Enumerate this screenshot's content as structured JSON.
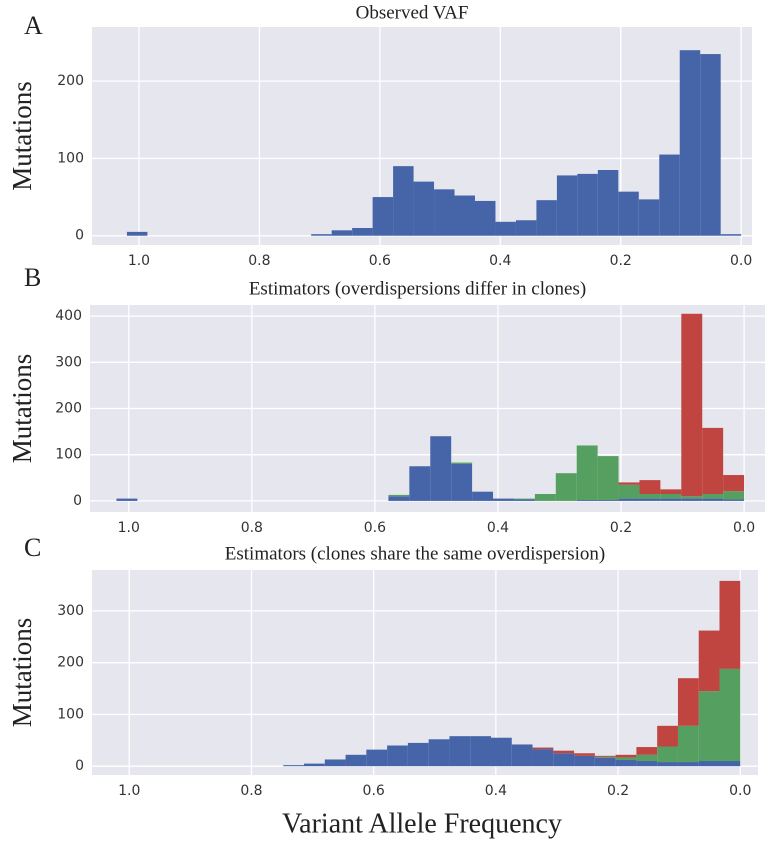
{
  "chart_data": [
    {
      "type": "histogram",
      "panel": "A",
      "title": "Observed VAF",
      "ylabel": "Mutations",
      "bins": [
        0,
        0.034,
        0.068,
        0.102,
        0.136,
        0.17,
        0.204,
        0.238,
        0.272,
        0.306,
        0.34,
        0.374,
        0.408,
        0.442,
        0.476,
        0.51,
        0.544,
        0.578,
        0.612,
        0.646,
        0.68,
        0.714,
        0.748,
        0.782,
        0.816,
        0.85,
        0.884,
        0.918,
        0.952,
        0.986,
        1.02
      ],
      "series": [
        {
          "color": "#4565a8",
          "values": [
            2,
            235,
            240,
            105,
            47,
            57,
            85,
            80,
            78,
            46,
            20,
            18,
            45,
            52,
            60,
            70,
            90,
            50,
            10,
            7,
            2,
            0,
            0,
            0,
            0,
            0,
            0,
            0,
            0,
            5
          ]
        }
      ],
      "xlim": [
        1.078,
        -0.018
      ],
      "xticks": [
        {
          "value": 1,
          "label": "1.0"
        },
        0.8,
        0.6,
        0.4,
        0.2,
        {
          "value": 0,
          "label": "0.0"
        }
      ],
      "ylim": [
        -12,
        270
      ],
      "yticks": [
        0,
        100,
        200
      ],
      "grid": true
    },
    {
      "type": "histogram",
      "panel": "B",
      "title": "Estimators (overdispersions differ in clones)",
      "ylabel": "Mutations",
      "bins": [
        0,
        0.034,
        0.068,
        0.102,
        0.136,
        0.17,
        0.204,
        0.238,
        0.272,
        0.306,
        0.34,
        0.374,
        0.408,
        0.442,
        0.476,
        0.51,
        0.544,
        0.578,
        0.612,
        0.646,
        0.68,
        0.714,
        0.748,
        0.782,
        0.816,
        0.85,
        0.884,
        0.918,
        0.952,
        0.986,
        1.02
      ],
      "series": [
        {
          "color": "#4565a8",
          "values": [
            3,
            5,
            5,
            5,
            5,
            5,
            2,
            2,
            0,
            0,
            3,
            5,
            20,
            80,
            140,
            75,
            10,
            0,
            0,
            0,
            0,
            0,
            0,
            0,
            0,
            0,
            0,
            0,
            0,
            5
          ]
        },
        {
          "color": "#55a060",
          "values": [
            18,
            10,
            5,
            10,
            10,
            30,
            95,
            118,
            60,
            15,
            2,
            0,
            0,
            3,
            0,
            0,
            3,
            0,
            0,
            0,
            0,
            0,
            0,
            0,
            0,
            0,
            0,
            0,
            0,
            0
          ]
        },
        {
          "color": "#c0443f",
          "values": [
            35,
            143,
            395,
            10,
            30,
            5,
            0,
            0,
            0,
            0,
            0,
            0,
            0,
            0,
            0,
            0,
            0,
            0,
            0,
            0,
            0,
            0,
            0,
            0,
            0,
            0,
            0,
            0,
            0,
            0
          ]
        }
      ],
      "xlim": [
        1.063,
        -0.034
      ],
      "xticks": [
        {
          "value": 1,
          "label": "1.0"
        },
        0.8,
        0.6,
        0.4,
        0.2,
        {
          "value": 0,
          "label": "0.0"
        }
      ],
      "ylim": [
        -24,
        424
      ],
      "yticks": [
        0,
        100,
        200,
        300,
        400
      ],
      "grid": true
    },
    {
      "type": "histogram",
      "panel": "C",
      "title": "Estimators (clones share the same overdispersion)",
      "ylabel": "Mutations",
      "xlabel": "Variant Allele Frequency",
      "bins": [
        0,
        0.034,
        0.068,
        0.102,
        0.136,
        0.17,
        0.204,
        0.238,
        0.272,
        0.306,
        0.34,
        0.374,
        0.408,
        0.442,
        0.476,
        0.51,
        0.544,
        0.578,
        0.612,
        0.646,
        0.68,
        0.714,
        0.748,
        0.782,
        0.816,
        0.85,
        0.884,
        0.918,
        0.952,
        0.986,
        1.02
      ],
      "series": [
        {
          "color": "#4565a8",
          "values": [
            10,
            10,
            8,
            8,
            10,
            12,
            16,
            20,
            25,
            33,
            42,
            55,
            58,
            58,
            52,
            45,
            40,
            32,
            22,
            13,
            5,
            2,
            0,
            0,
            0,
            0,
            0,
            0,
            0,
            0
          ]
        },
        {
          "color": "#55a060",
          "values": [
            178,
            135,
            70,
            30,
            12,
            5,
            2,
            0,
            0,
            0,
            0,
            0,
            0,
            0,
            0,
            0,
            0,
            0,
            0,
            0,
            0,
            0,
            0,
            0,
            0,
            0,
            0,
            0,
            0,
            0
          ]
        },
        {
          "color": "#c0443f",
          "values": [
            170,
            117,
            92,
            40,
            15,
            5,
            2,
            5,
            5,
            3,
            0,
            0,
            0,
            0,
            0,
            0,
            0,
            0,
            0,
            0,
            0,
            0,
            0,
            0,
            0,
            0,
            0,
            0,
            0,
            0
          ]
        }
      ],
      "xlim": [
        1.061,
        -0.029
      ],
      "xticks": [
        {
          "value": 1,
          "label": "1.0"
        },
        0.8,
        0.6,
        0.4,
        0.2,
        {
          "value": 0,
          "label": "0.0"
        }
      ],
      "ylim": [
        -17,
        379
      ],
      "yticks": [
        0,
        100,
        200,
        300
      ],
      "grid": true
    }
  ]
}
